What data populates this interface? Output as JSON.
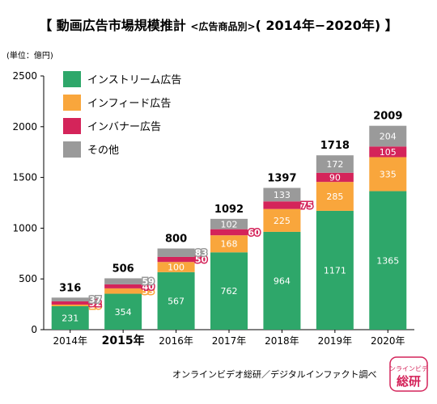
{
  "header": {
    "title": "【 動画広告市場規模推計",
    "title_sub": "<広告商品別>",
    "title_end": "( 2014年−2020年) 】",
    "unit": "(単位：億円)"
  },
  "footer": {
    "source": "オンラインビデオ総研／デジタルインファクト調べ",
    "stamp_top": "オンラインビデオ",
    "stamp_bottom": "総研"
  },
  "colors": {
    "instream": "#2ea76a",
    "infeed": "#f9a63c",
    "inbanner": "#d4245a",
    "other": "#9a9a9a"
  },
  "chart_data": {
    "type": "bar",
    "stacked": true,
    "categories": [
      "2014年",
      "2015年",
      "2016年",
      "2017年",
      "2018年",
      "2019年",
      "2020年"
    ],
    "highlighted_category": "2015年",
    "ylim": [
      0,
      2500
    ],
    "yticks": [
      0,
      500,
      1000,
      1500,
      2000,
      2500
    ],
    "grid": false,
    "legend_position": "top-left",
    "series": [
      {
        "name": "インストリーム広告",
        "color": "#2ea76a",
        "values": [
          231,
          354,
          567,
          762,
          964,
          1171,
          1365
        ]
      },
      {
        "name": "インフィード広告",
        "color": "#f9a63c",
        "values": [
          16,
          53,
          100,
          168,
          225,
          285,
          335
        ]
      },
      {
        "name": "インバナー広告",
        "color": "#d4245a",
        "values": [
          32,
          40,
          50,
          60,
          75,
          90,
          105
        ]
      },
      {
        "name": "その他",
        "color": "#9a9a9a",
        "values": [
          37,
          59,
          83,
          102,
          133,
          172,
          204
        ]
      }
    ],
    "totals": [
      316,
      506,
      800,
      1092,
      1397,
      1718,
      2009
    ]
  }
}
